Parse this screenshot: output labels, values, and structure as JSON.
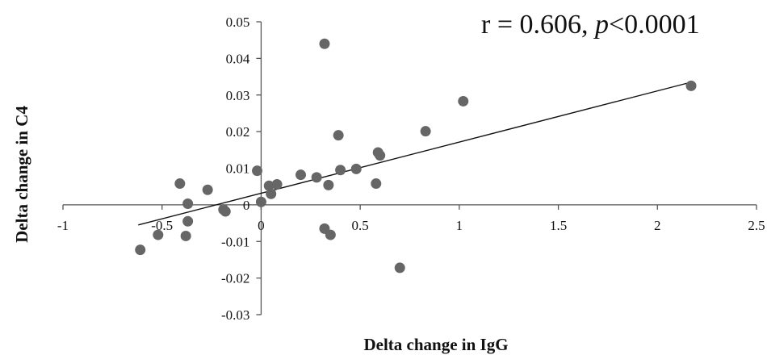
{
  "chart_data": {
    "type": "scatter",
    "title": "",
    "xlabel": "Delta change in IgG",
    "ylabel": "Delta change in C4",
    "xlim": [
      -1,
      2.5
    ],
    "ylim": [
      -0.03,
      0.05
    ],
    "x_ticks": [
      -1,
      -0.5,
      0,
      0.5,
      1,
      1.5,
      2,
      2.5
    ],
    "x_tick_labels": [
      "-1",
      "-0.5",
      "0",
      "0.5",
      "1",
      "1.5",
      "2",
      "2.5"
    ],
    "y_ticks": [
      -0.03,
      -0.02,
      -0.01,
      0,
      0.01,
      0.02,
      0.03,
      0.04,
      0.05
    ],
    "y_tick_labels": [
      "-0.03",
      "-0.02",
      "-0.01",
      "0",
      "0.01",
      "0.02",
      "0.03",
      "0.04",
      "0.05"
    ],
    "grid": false,
    "legend": "none",
    "annotation": {
      "r_text": "r = 0.606, ",
      "p_symbol": "p",
      "p_text": "<0.0001"
    },
    "trendline": {
      "x_start": -0.62,
      "y_start": -0.0055,
      "x_end": 2.17,
      "y_end": 0.0335
    },
    "marker_color": "#666666",
    "line_color": "#111111",
    "points": [
      {
        "x": -0.61,
        "y": -0.0123
      },
      {
        "x": -0.52,
        "y": -0.0082
      },
      {
        "x": -0.41,
        "y": 0.0058
      },
      {
        "x": -0.38,
        "y": -0.0085
      },
      {
        "x": -0.37,
        "y": 0.0003
      },
      {
        "x": -0.37,
        "y": -0.0045
      },
      {
        "x": -0.27,
        "y": 0.0041
      },
      {
        "x": -0.19,
        "y": -0.0013
      },
      {
        "x": -0.18,
        "y": -0.0018
      },
      {
        "x": -0.02,
        "y": 0.0093
      },
      {
        "x": 0.0,
        "y": 0.0008
      },
      {
        "x": 0.04,
        "y": 0.0052
      },
      {
        "x": 0.05,
        "y": 0.003
      },
      {
        "x": 0.08,
        "y": 0.0056
      },
      {
        "x": 0.2,
        "y": 0.0082
      },
      {
        "x": 0.28,
        "y": 0.0075
      },
      {
        "x": 0.32,
        "y": -0.0065
      },
      {
        "x": 0.32,
        "y": 0.044
      },
      {
        "x": 0.34,
        "y": 0.0054
      },
      {
        "x": 0.35,
        "y": -0.0082
      },
      {
        "x": 0.39,
        "y": 0.019
      },
      {
        "x": 0.4,
        "y": 0.0095
      },
      {
        "x": 0.48,
        "y": 0.0098
      },
      {
        "x": 0.58,
        "y": 0.0058
      },
      {
        "x": 0.59,
        "y": 0.0143
      },
      {
        "x": 0.6,
        "y": 0.0135
      },
      {
        "x": 0.7,
        "y": -0.0172
      },
      {
        "x": 0.83,
        "y": 0.0201
      },
      {
        "x": 1.02,
        "y": 0.0283
      },
      {
        "x": 2.17,
        "y": 0.0325
      }
    ]
  }
}
